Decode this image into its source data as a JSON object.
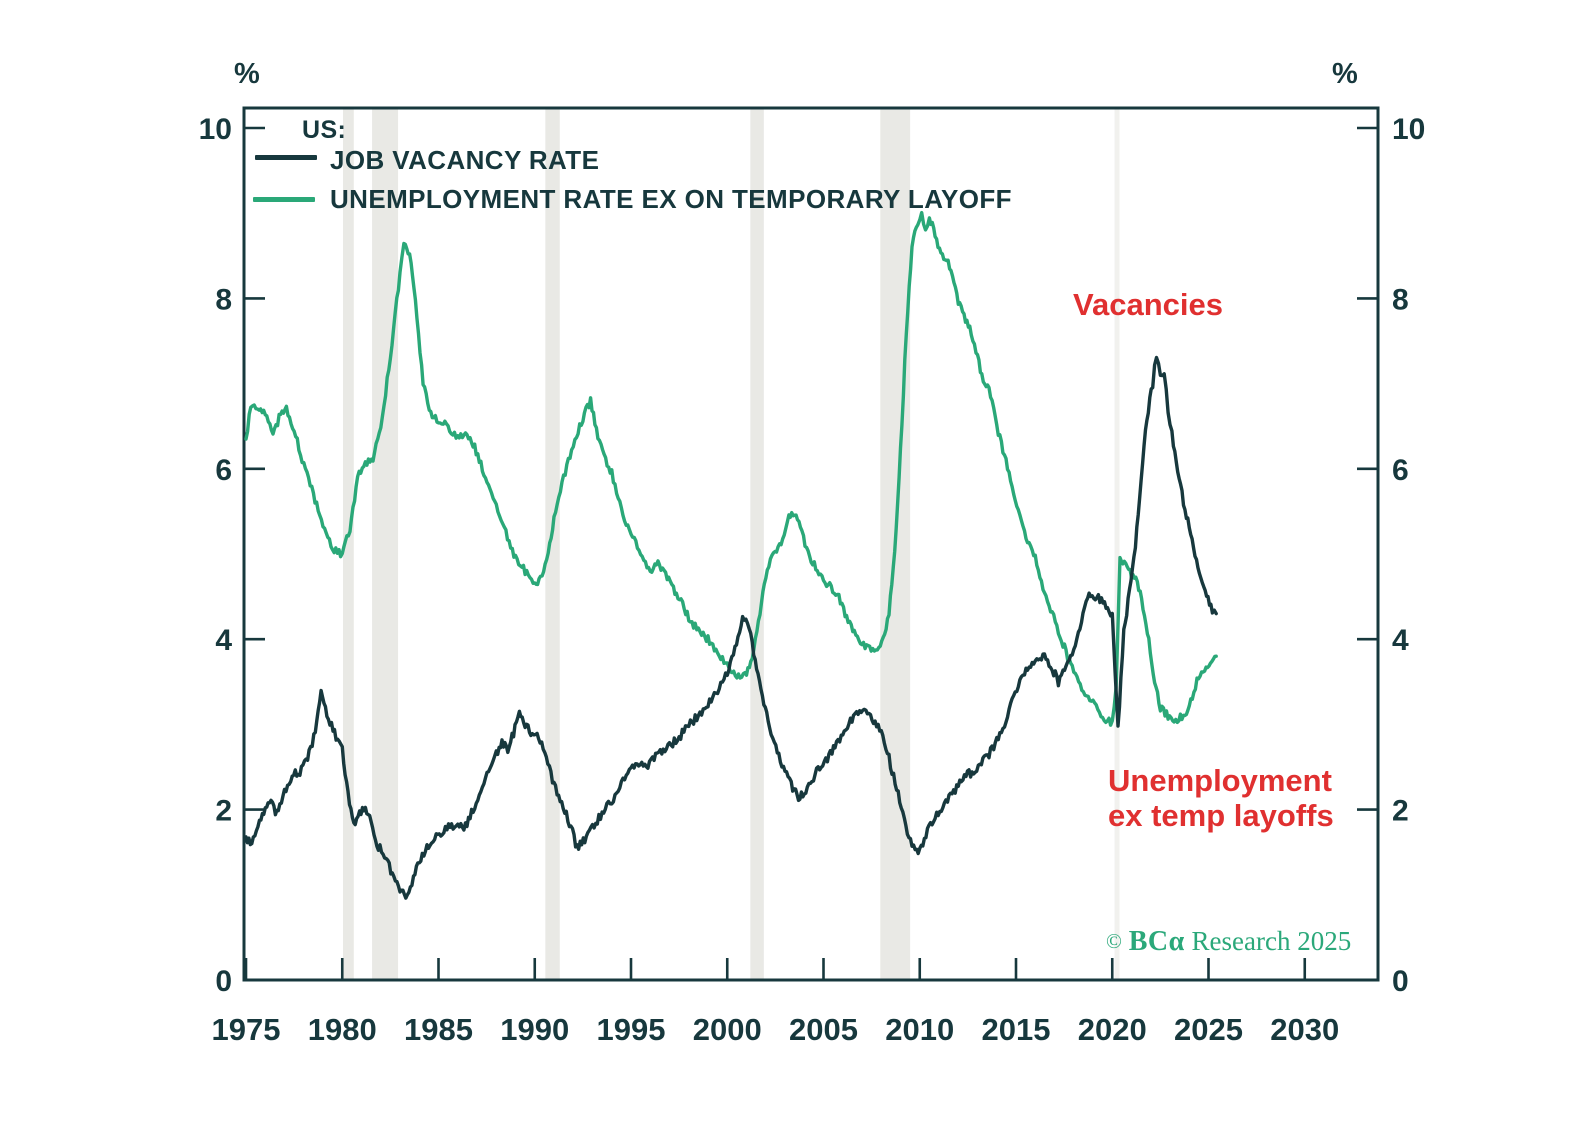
{
  "colors": {
    "navy": "#17383d",
    "green": "#2aa878",
    "red": "#e03030",
    "band": "#e9e9e5",
    "band_light": "#f1f1ee",
    "copyright_green": "#2ba87a",
    "background": "#ffffff"
  },
  "legend": {
    "group_label": "US:",
    "items": [
      {
        "label": "JOB VACANCY RATE",
        "color": "#17383d"
      },
      {
        "label": "UNEMPLOYMENT RATE EX ON TEMPORARY LAYOFF",
        "color": "#2aa878"
      }
    ]
  },
  "annotations": {
    "vacancies": "Vacancies",
    "unemployment_line1": "Unemployment",
    "unemployment_line2": "ex temp layoffs"
  },
  "copyright": {
    "symbol": "©",
    "brand": "BCα",
    "text": "Research 2025"
  },
  "chart_data": {
    "type": "line",
    "title": "",
    "xlabel": "",
    "ylabel": "%",
    "x_axis": {
      "ticks": [
        1975,
        1980,
        1985,
        1990,
        1995,
        2000,
        2005,
        2010,
        2015,
        2020,
        2025,
        2030
      ],
      "range": [
        1974.84,
        2033.76
      ]
    },
    "y_axis": {
      "ticks": [
        0,
        2,
        4,
        6,
        8,
        10
      ],
      "range": [
        0,
        10.24
      ],
      "unit_label": "%",
      "dual_axis": true
    },
    "grid": false,
    "legend_position": "top-left-inside",
    "recession_bands": [
      {
        "from": 1980.04,
        "to": 1980.6,
        "light": false
      },
      {
        "from": 1981.55,
        "to": 1982.9,
        "light": false
      },
      {
        "from": 1990.55,
        "to": 1991.3,
        "light": false
      },
      {
        "from": 2001.2,
        "to": 2001.9,
        "light": false
      },
      {
        "from": 2007.95,
        "to": 2009.5,
        "light": false
      },
      {
        "from": 2020.12,
        "to": 2020.38,
        "light": true
      }
    ],
    "series": [
      {
        "name": "UNEMPLOYMENT RATE EX ON TEMPORARY LAYOFF",
        "color": "#2aa878",
        "points": [
          [
            1975.0,
            6.35
          ],
          [
            1975.25,
            6.75
          ],
          [
            1975.6,
            6.7
          ],
          [
            1976.0,
            6.65
          ],
          [
            1976.4,
            6.4
          ],
          [
            1976.8,
            6.65
          ],
          [
            1977.1,
            6.7
          ],
          [
            1977.5,
            6.45
          ],
          [
            1978.0,
            6.05
          ],
          [
            1978.5,
            5.7
          ],
          [
            1979.0,
            5.3
          ],
          [
            1979.5,
            5.05
          ],
          [
            1980.0,
            5.0
          ],
          [
            1980.4,
            5.3
          ],
          [
            1980.8,
            5.9
          ],
          [
            1981.2,
            6.05
          ],
          [
            1981.6,
            6.1
          ],
          [
            1982.0,
            6.5
          ],
          [
            1982.5,
            7.3
          ],
          [
            1983.0,
            8.3
          ],
          [
            1983.2,
            8.65
          ],
          [
            1983.5,
            8.5
          ],
          [
            1983.8,
            8.0
          ],
          [
            1984.2,
            7.0
          ],
          [
            1984.6,
            6.65
          ],
          [
            1985.0,
            6.55
          ],
          [
            1985.5,
            6.5
          ],
          [
            1986.0,
            6.35
          ],
          [
            1986.4,
            6.45
          ],
          [
            1986.8,
            6.3
          ],
          [
            1987.2,
            6.05
          ],
          [
            1987.6,
            5.8
          ],
          [
            1988.0,
            5.55
          ],
          [
            1988.5,
            5.25
          ],
          [
            1989.0,
            4.95
          ],
          [
            1989.5,
            4.8
          ],
          [
            1990.0,
            4.65
          ],
          [
            1990.3,
            4.7
          ],
          [
            1990.7,
            5.0
          ],
          [
            1991.0,
            5.4
          ],
          [
            1991.5,
            5.9
          ],
          [
            1992.0,
            6.3
          ],
          [
            1992.5,
            6.6
          ],
          [
            1992.9,
            6.8
          ],
          [
            1993.2,
            6.45
          ],
          [
            1993.6,
            6.15
          ],
          [
            1994.0,
            5.95
          ],
          [
            1994.5,
            5.5
          ],
          [
            1995.0,
            5.25
          ],
          [
            1995.5,
            5.0
          ],
          [
            1996.0,
            4.8
          ],
          [
            1996.4,
            4.9
          ],
          [
            1996.8,
            4.75
          ],
          [
            1997.2,
            4.6
          ],
          [
            1997.6,
            4.45
          ],
          [
            1998.0,
            4.25
          ],
          [
            1998.5,
            4.1
          ],
          [
            1999.0,
            4.0
          ],
          [
            1999.5,
            3.85
          ],
          [
            2000.0,
            3.7
          ],
          [
            2000.5,
            3.55
          ],
          [
            2001.0,
            3.6
          ],
          [
            2001.3,
            3.8
          ],
          [
            2001.7,
            4.3
          ],
          [
            2002.0,
            4.75
          ],
          [
            2002.4,
            5.0
          ],
          [
            2002.8,
            5.1
          ],
          [
            2003.2,
            5.45
          ],
          [
            2003.5,
            5.5
          ],
          [
            2003.8,
            5.3
          ],
          [
            2004.2,
            5.0
          ],
          [
            2004.6,
            4.85
          ],
          [
            2005.0,
            4.7
          ],
          [
            2005.4,
            4.6
          ],
          [
            2005.8,
            4.5
          ],
          [
            2006.2,
            4.25
          ],
          [
            2006.6,
            4.1
          ],
          [
            2007.0,
            3.95
          ],
          [
            2007.4,
            3.9
          ],
          [
            2007.8,
            3.85
          ],
          [
            2008.1,
            4.0
          ],
          [
            2008.4,
            4.3
          ],
          [
            2008.7,
            5.0
          ],
          [
            2009.0,
            6.2
          ],
          [
            2009.3,
            7.6
          ],
          [
            2009.6,
            8.6
          ],
          [
            2009.9,
            8.9
          ],
          [
            2010.1,
            9.0
          ],
          [
            2010.3,
            8.8
          ],
          [
            2010.5,
            8.95
          ],
          [
            2010.8,
            8.75
          ],
          [
            2011.1,
            8.5
          ],
          [
            2011.4,
            8.45
          ],
          [
            2011.7,
            8.3
          ],
          [
            2012.0,
            7.95
          ],
          [
            2012.3,
            7.8
          ],
          [
            2012.6,
            7.65
          ],
          [
            2013.0,
            7.3
          ],
          [
            2013.3,
            7.05
          ],
          [
            2013.6,
            6.95
          ],
          [
            2014.0,
            6.5
          ],
          [
            2014.4,
            6.15
          ],
          [
            2014.8,
            5.8
          ],
          [
            2015.2,
            5.45
          ],
          [
            2015.6,
            5.15
          ],
          [
            2016.0,
            4.95
          ],
          [
            2016.4,
            4.6
          ],
          [
            2016.8,
            4.35
          ],
          [
            2017.2,
            4.1
          ],
          [
            2017.6,
            3.85
          ],
          [
            2018.0,
            3.6
          ],
          [
            2018.5,
            3.4
          ],
          [
            2019.0,
            3.25
          ],
          [
            2019.5,
            3.1
          ],
          [
            2020.0,
            3.0
          ],
          [
            2020.2,
            3.4
          ],
          [
            2020.4,
            4.95
          ],
          [
            2020.7,
            4.9
          ],
          [
            2021.0,
            4.75
          ],
          [
            2021.3,
            4.7
          ],
          [
            2021.6,
            4.35
          ],
          [
            2021.9,
            4.0
          ],
          [
            2022.2,
            3.5
          ],
          [
            2022.5,
            3.2
          ],
          [
            2022.9,
            3.1
          ],
          [
            2023.3,
            3.05
          ],
          [
            2023.7,
            3.1
          ],
          [
            2024.0,
            3.2
          ],
          [
            2024.4,
            3.5
          ],
          [
            2024.8,
            3.65
          ],
          [
            2025.1,
            3.7
          ],
          [
            2025.4,
            3.8
          ]
        ]
      },
      {
        "name": "JOB VACANCY RATE",
        "color": "#17383d",
        "points": [
          [
            1975.0,
            1.68
          ],
          [
            1975.3,
            1.6
          ],
          [
            1975.7,
            1.85
          ],
          [
            1976.0,
            2.0
          ],
          [
            1976.3,
            2.1
          ],
          [
            1976.6,
            1.95
          ],
          [
            1977.0,
            2.2
          ],
          [
            1977.4,
            2.4
          ],
          [
            1977.8,
            2.45
          ],
          [
            1978.2,
            2.6
          ],
          [
            1978.6,
            2.9
          ],
          [
            1978.9,
            3.35
          ],
          [
            1979.2,
            3.1
          ],
          [
            1979.6,
            2.9
          ],
          [
            1980.0,
            2.7
          ],
          [
            1980.3,
            2.2
          ],
          [
            1980.6,
            1.8
          ],
          [
            1980.9,
            1.95
          ],
          [
            1981.2,
            2.0
          ],
          [
            1981.5,
            1.85
          ],
          [
            1981.8,
            1.6
          ],
          [
            1982.2,
            1.45
          ],
          [
            1982.6,
            1.25
          ],
          [
            1983.0,
            1.05
          ],
          [
            1983.3,
            0.97
          ],
          [
            1983.7,
            1.2
          ],
          [
            1984.0,
            1.4
          ],
          [
            1984.4,
            1.55
          ],
          [
            1984.8,
            1.65
          ],
          [
            1985.2,
            1.75
          ],
          [
            1985.6,
            1.8
          ],
          [
            1986.0,
            1.85
          ],
          [
            1986.4,
            1.8
          ],
          [
            1986.8,
            2.0
          ],
          [
            1987.2,
            2.2
          ],
          [
            1987.6,
            2.45
          ],
          [
            1988.0,
            2.65
          ],
          [
            1988.3,
            2.8
          ],
          [
            1988.6,
            2.7
          ],
          [
            1988.9,
            2.9
          ],
          [
            1989.2,
            3.15
          ],
          [
            1989.5,
            3.0
          ],
          [
            1989.8,
            2.9
          ],
          [
            1990.2,
            2.85
          ],
          [
            1990.6,
            2.6
          ],
          [
            1991.0,
            2.3
          ],
          [
            1991.4,
            2.1
          ],
          [
            1991.8,
            1.85
          ],
          [
            1992.2,
            1.55
          ],
          [
            1992.6,
            1.65
          ],
          [
            1993.0,
            1.8
          ],
          [
            1993.5,
            1.95
          ],
          [
            1994.0,
            2.1
          ],
          [
            1994.5,
            2.3
          ],
          [
            1995.0,
            2.5
          ],
          [
            1995.4,
            2.55
          ],
          [
            1995.8,
            2.5
          ],
          [
            1996.2,
            2.6
          ],
          [
            1996.6,
            2.7
          ],
          [
            1997.0,
            2.75
          ],
          [
            1997.5,
            2.85
          ],
          [
            1998.0,
            3.0
          ],
          [
            1998.5,
            3.1
          ],
          [
            1999.0,
            3.25
          ],
          [
            1999.5,
            3.4
          ],
          [
            2000.0,
            3.6
          ],
          [
            2000.4,
            3.9
          ],
          [
            2000.8,
            4.25
          ],
          [
            2001.05,
            4.2
          ],
          [
            2001.3,
            3.95
          ],
          [
            2001.6,
            3.55
          ],
          [
            2001.9,
            3.25
          ],
          [
            2002.2,
            2.95
          ],
          [
            2002.6,
            2.7
          ],
          [
            2003.0,
            2.45
          ],
          [
            2003.4,
            2.25
          ],
          [
            2003.7,
            2.15
          ],
          [
            2004.0,
            2.2
          ],
          [
            2004.4,
            2.35
          ],
          [
            2004.8,
            2.5
          ],
          [
            2005.2,
            2.6
          ],
          [
            2005.6,
            2.75
          ],
          [
            2006.0,
            2.9
          ],
          [
            2006.4,
            3.05
          ],
          [
            2006.8,
            3.15
          ],
          [
            2007.2,
            3.15
          ],
          [
            2007.6,
            3.05
          ],
          [
            2008.0,
            2.9
          ],
          [
            2008.4,
            2.6
          ],
          [
            2008.8,
            2.25
          ],
          [
            2009.2,
            1.85
          ],
          [
            2009.6,
            1.6
          ],
          [
            2010.0,
            1.5
          ],
          [
            2010.4,
            1.75
          ],
          [
            2010.8,
            1.9
          ],
          [
            2011.2,
            2.05
          ],
          [
            2011.6,
            2.15
          ],
          [
            2012.0,
            2.3
          ],
          [
            2012.4,
            2.4
          ],
          [
            2012.8,
            2.45
          ],
          [
            2013.2,
            2.55
          ],
          [
            2013.6,
            2.65
          ],
          [
            2014.0,
            2.8
          ],
          [
            2014.4,
            3.0
          ],
          [
            2014.8,
            3.3
          ],
          [
            2015.2,
            3.5
          ],
          [
            2015.6,
            3.65
          ],
          [
            2016.0,
            3.75
          ],
          [
            2016.4,
            3.8
          ],
          [
            2016.8,
            3.7
          ],
          [
            2017.2,
            3.5
          ],
          [
            2017.6,
            3.65
          ],
          [
            2018.0,
            3.9
          ],
          [
            2018.4,
            4.2
          ],
          [
            2018.8,
            4.55
          ],
          [
            2019.2,
            4.5
          ],
          [
            2019.6,
            4.4
          ],
          [
            2020.0,
            4.3
          ],
          [
            2020.3,
            2.95
          ],
          [
            2020.6,
            4.1
          ],
          [
            2020.9,
            4.55
          ],
          [
            2021.2,
            5.1
          ],
          [
            2021.5,
            5.9
          ],
          [
            2021.8,
            6.6
          ],
          [
            2022.1,
            7.0
          ],
          [
            2022.3,
            7.35
          ],
          [
            2022.5,
            7.1
          ],
          [
            2022.7,
            7.15
          ],
          [
            2022.9,
            6.7
          ],
          [
            2023.1,
            6.4
          ],
          [
            2023.4,
            6.0
          ],
          [
            2023.7,
            5.6
          ],
          [
            2024.0,
            5.3
          ],
          [
            2024.3,
            5.0
          ],
          [
            2024.6,
            4.7
          ],
          [
            2024.9,
            4.5
          ],
          [
            2025.2,
            4.35
          ],
          [
            2025.4,
            4.3
          ]
        ]
      }
    ]
  }
}
